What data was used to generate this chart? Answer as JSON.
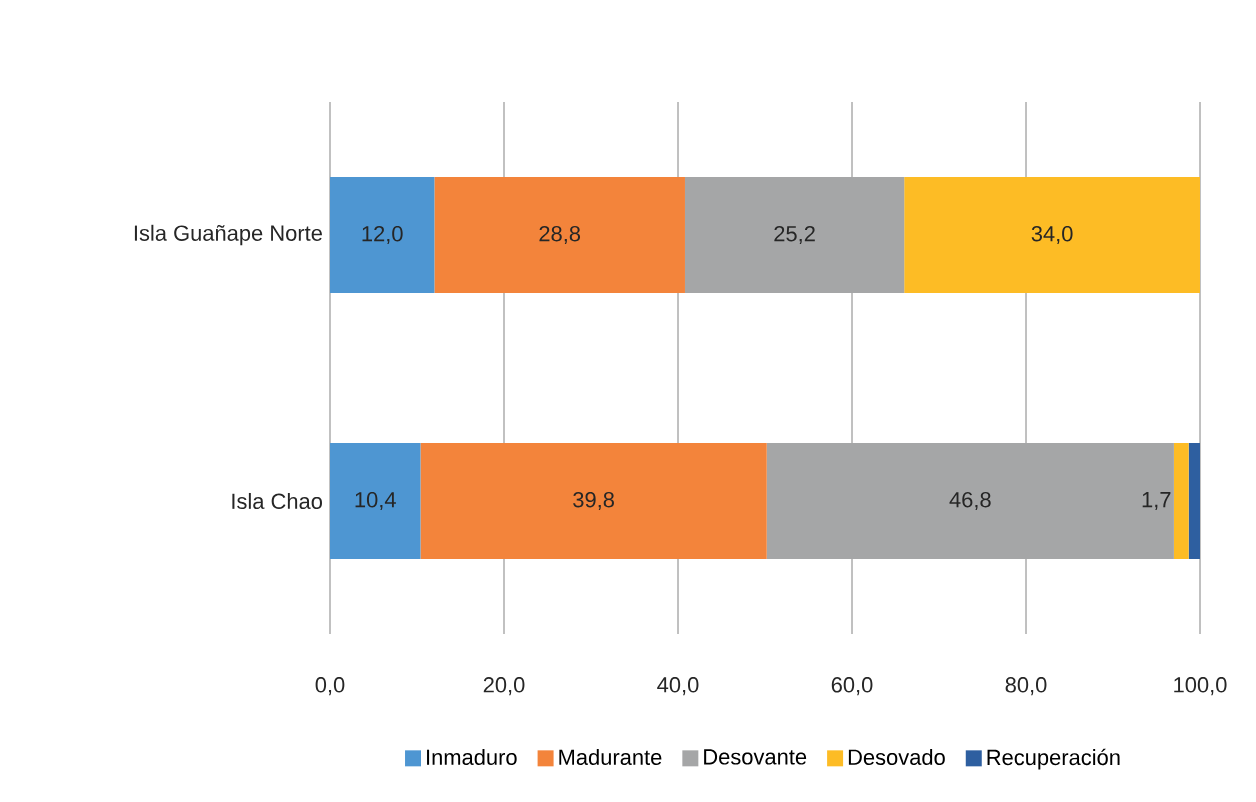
{
  "chart_data": {
    "type": "bar",
    "orientation": "horizontal",
    "stacked": true,
    "categories": [
      "Isla Guañape Norte",
      "Isla Chao"
    ],
    "series": [
      {
        "name": "Inmaduro",
        "color": "#4e96d2",
        "values": [
          12.0,
          10.4
        ],
        "value_labels": [
          "12,0",
          "10,4"
        ]
      },
      {
        "name": "Madurante",
        "color": "#f3843b",
        "values": [
          28.8,
          39.8
        ],
        "value_labels": [
          "28,8",
          "39,8"
        ]
      },
      {
        "name": "Desovante",
        "color": "#a5a6a7",
        "values": [
          25.2,
          46.8
        ],
        "value_labels": [
          "25,2",
          "46,8"
        ]
      },
      {
        "name": "Desovado",
        "color": "#fdbc25",
        "values": [
          34.0,
          1.7
        ],
        "value_labels": [
          "34,0",
          "1,7"
        ]
      },
      {
        "name": "Recuperación",
        "color": "#2e5fa0",
        "values": [
          null,
          1.3
        ],
        "value_labels": [
          null,
          null
        ]
      }
    ],
    "xlim": [
      0,
      100
    ],
    "xticks": [
      {
        "value": 0,
        "label": "0,0"
      },
      {
        "value": 20,
        "label": "20,0"
      },
      {
        "value": 40,
        "label": "40,0"
      },
      {
        "value": 60,
        "label": "60,0"
      },
      {
        "value": 80,
        "label": "80,0"
      },
      {
        "value": 100,
        "label": "100,0"
      }
    ],
    "grid": "x",
    "legend": "bottom"
  }
}
